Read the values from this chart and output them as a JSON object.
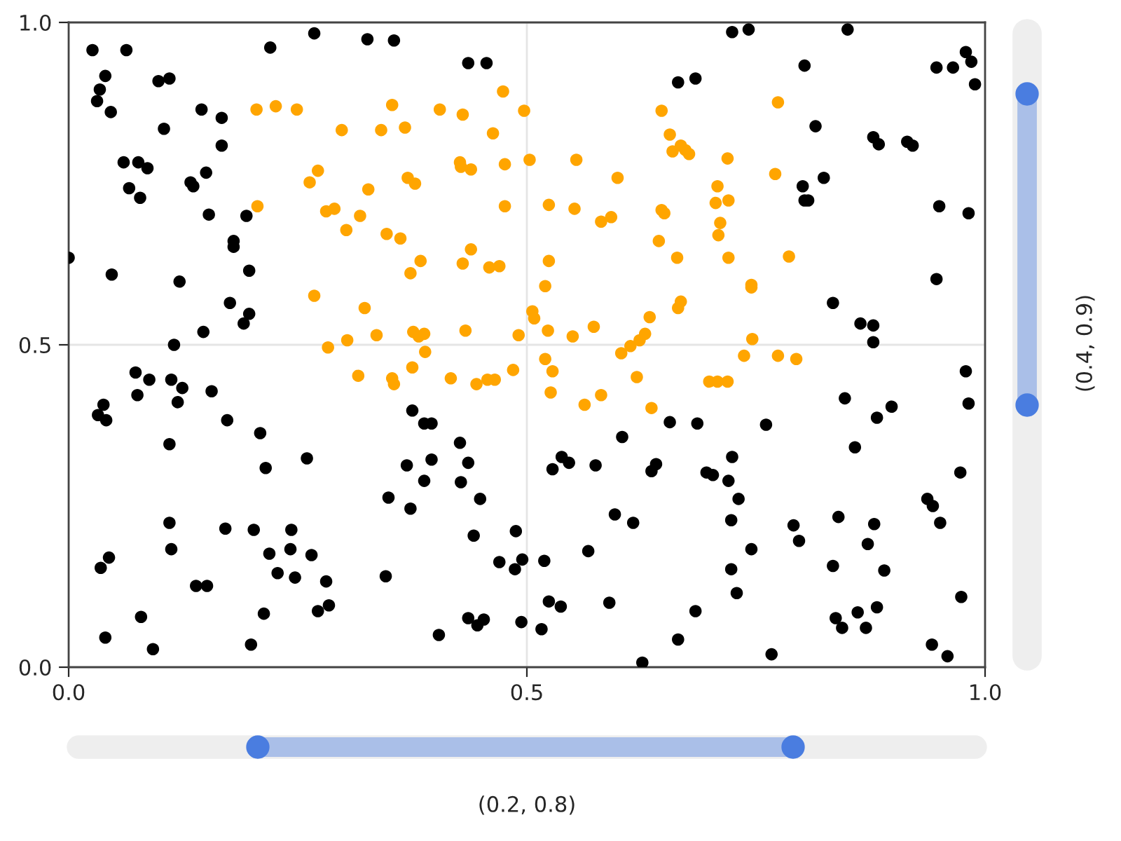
{
  "chart_data": {
    "type": "scatter",
    "xlim": [
      0,
      1
    ],
    "ylim": [
      0,
      1
    ],
    "xticks": [
      {
        "value": 0,
        "label": "0.0"
      },
      {
        "value": 0.5,
        "label": "0.5"
      },
      {
        "value": 1,
        "label": "1.0"
      }
    ],
    "yticks": [
      {
        "value": 0,
        "label": "0.0"
      },
      {
        "value": 0.5,
        "label": "0.5"
      },
      {
        "value": 1,
        "label": "1.0"
      }
    ],
    "grid": true,
    "marker": "circle",
    "annotations": [
      "(0.2, 0.8)",
      "(0.4, 0.9)"
    ],
    "series": [
      {
        "color": "#000000",
        "x": [
          0.026,
          0.04,
          0.034,
          0.031,
          0.046,
          0.047,
          0.063,
          0.06,
          0.066,
          0.076,
          0.078,
          0.086,
          0.098,
          0.11,
          0.104,
          0.121,
          0.133,
          0.136,
          0.145,
          0.15,
          0.153,
          0.167,
          0.167,
          0.18,
          0.18,
          0.176,
          0.191,
          0.197,
          0.197,
          0.194,
          0.22,
          0.268,
          0.326,
          0.355,
          0.436,
          0.456,
          0.147,
          0.115,
          0.032,
          0.038,
          0.041,
          0.073,
          0.088,
          0.075,
          0.112,
          0.124,
          0.119,
          0.156,
          0.173,
          0.11,
          0.209,
          0.215,
          0.26,
          0.375,
          0.388,
          0.396,
          0.369,
          0.388,
          0.396,
          0.427,
          0.428,
          0.436,
          0.449,
          0.442,
          0.349,
          0.373,
          0.11,
          0.112,
          0.171,
          0.202,
          0.243,
          0.219,
          0.228,
          0.242,
          0.247,
          0.265,
          0.139,
          0.151,
          0.281,
          0.346,
          0.272,
          0.284,
          0.213,
          0.199,
          0.092,
          0.079,
          0.035,
          0.044,
          0.04,
          0.404,
          0.436,
          0.446,
          0.453,
          0.47,
          0.487,
          0.488,
          0.495,
          0.494,
          0.516,
          0.519,
          0.524,
          0.537,
          0.528,
          0.538,
          0.546,
          0.575,
          0.567,
          0.59,
          0.596,
          0.604,
          0.616,
          0.626,
          0.636,
          0.641,
          0.656,
          0.665,
          0.684,
          0.686,
          0.696,
          0.703,
          0.72,
          0.724,
          0.731,
          0.723,
          0.723,
          0.729,
          0.745,
          0.761,
          0.767,
          0.791,
          0.797,
          0.665,
          0.684,
          0.724,
          0.742,
          0.85,
          0.803,
          0.815,
          0.824,
          0.801,
          0.803,
          0.807,
          0.834,
          0.864,
          0.878,
          0.878,
          0.878,
          0.884,
          0.915,
          0.921,
          0.847,
          0.858,
          0.882,
          0.898,
          0.872,
          0.879,
          0.84,
          0.834,
          0.89,
          0.882,
          0.861,
          0.87,
          0.837,
          0.844,
          0.937,
          0.943,
          0.951,
          0.973,
          0.974,
          0.979,
          0.982,
          0.947,
          0.95,
          0.982,
          0.947,
          0.965,
          0.979,
          0.985,
          0.989,
          0.942,
          0.959,
          0.0
        ],
        "values": [
          0.957,
          0.917,
          0.896,
          0.878,
          0.861,
          0.609,
          0.957,
          0.783,
          0.743,
          0.783,
          0.728,
          0.774,
          0.909,
          0.913,
          0.835,
          0.598,
          0.752,
          0.746,
          0.865,
          0.767,
          0.702,
          0.852,
          0.809,
          0.661,
          0.652,
          0.565,
          0.533,
          0.548,
          0.615,
          0.7,
          0.961,
          0.983,
          0.974,
          0.972,
          0.937,
          0.937,
          0.52,
          0.5,
          0.391,
          0.407,
          0.383,
          0.457,
          0.446,
          0.422,
          0.446,
          0.433,
          0.411,
          0.428,
          0.383,
          0.346,
          0.363,
          0.309,
          0.324,
          0.398,
          0.378,
          0.378,
          0.313,
          0.289,
          0.322,
          0.348,
          0.287,
          0.317,
          0.261,
          0.204,
          0.263,
          0.246,
          0.224,
          0.183,
          0.215,
          0.213,
          0.213,
          0.176,
          0.146,
          0.183,
          0.139,
          0.174,
          0.126,
          0.126,
          0.133,
          0.141,
          0.087,
          0.096,
          0.083,
          0.035,
          0.028,
          0.078,
          0.154,
          0.17,
          0.046,
          0.05,
          0.076,
          0.065,
          0.074,
          0.163,
          0.152,
          0.211,
          0.167,
          0.07,
          0.059,
          0.165,
          0.102,
          0.094,
          0.307,
          0.326,
          0.317,
          0.313,
          0.18,
          0.1,
          0.237,
          0.357,
          0.224,
          0.007,
          0.304,
          0.315,
          0.38,
          0.043,
          0.087,
          0.378,
          0.302,
          0.298,
          0.289,
          0.326,
          0.261,
          0.228,
          0.152,
          0.115,
          0.183,
          0.376,
          0.02,
          0.22,
          0.196,
          0.907,
          0.913,
          0.985,
          0.989,
          0.989,
          0.933,
          0.839,
          0.759,
          0.746,
          0.724,
          0.724,
          0.565,
          0.533,
          0.504,
          0.53,
          0.822,
          0.811,
          0.815,
          0.809,
          0.417,
          0.341,
          0.387,
          0.404,
          0.191,
          0.222,
          0.233,
          0.157,
          0.15,
          0.093,
          0.085,
          0.061,
          0.076,
          0.061,
          0.261,
          0.25,
          0.224,
          0.302,
          0.109,
          0.459,
          0.409,
          0.602,
          0.715,
          0.704,
          0.93,
          0.93,
          0.954,
          0.939,
          0.904,
          0.035,
          0.017,
          0.635
        ]
      },
      {
        "color": "#ffa500",
        "x": [
          0.205,
          0.226,
          0.249,
          0.206,
          0.263,
          0.272,
          0.281,
          0.29,
          0.298,
          0.303,
          0.318,
          0.327,
          0.341,
          0.367,
          0.353,
          0.268,
          0.283,
          0.304,
          0.323,
          0.316,
          0.336,
          0.347,
          0.362,
          0.37,
          0.378,
          0.373,
          0.384,
          0.376,
          0.388,
          0.389,
          0.382,
          0.375,
          0.353,
          0.355,
          0.405,
          0.43,
          0.427,
          0.428,
          0.439,
          0.43,
          0.439,
          0.459,
          0.47,
          0.433,
          0.417,
          0.445,
          0.457,
          0.465,
          0.463,
          0.474,
          0.476,
          0.476,
          0.497,
          0.503,
          0.506,
          0.508,
          0.491,
          0.485,
          0.52,
          0.524,
          0.523,
          0.52,
          0.528,
          0.526,
          0.524,
          0.554,
          0.552,
          0.55,
          0.563,
          0.581,
          0.573,
          0.581,
          0.592,
          0.599,
          0.603,
          0.613,
          0.623,
          0.62,
          0.629,
          0.634,
          0.636,
          0.644,
          0.647,
          0.647,
          0.65,
          0.656,
          0.659,
          0.668,
          0.673,
          0.677,
          0.664,
          0.665,
          0.668,
          0.708,
          0.706,
          0.72,
          0.719,
          0.711,
          0.709,
          0.72,
          0.699,
          0.708,
          0.719,
          0.737,
          0.745,
          0.745,
          0.746,
          0.771,
          0.774,
          0.774,
          0.786,
          0.794
        ],
        "values": [
          0.865,
          0.87,
          0.865,
          0.715,
          0.752,
          0.77,
          0.707,
          0.711,
          0.833,
          0.678,
          0.7,
          0.741,
          0.833,
          0.837,
          0.872,
          0.576,
          0.496,
          0.507,
          0.557,
          0.452,
          0.515,
          0.672,
          0.665,
          0.759,
          0.75,
          0.611,
          0.63,
          0.52,
          0.517,
          0.489,
          0.513,
          0.465,
          0.448,
          0.439,
          0.865,
          0.857,
          0.783,
          0.776,
          0.772,
          0.626,
          0.648,
          0.62,
          0.622,
          0.522,
          0.448,
          0.439,
          0.446,
          0.446,
          0.828,
          0.893,
          0.78,
          0.715,
          0.863,
          0.787,
          0.552,
          0.541,
          0.515,
          0.461,
          0.591,
          0.63,
          0.522,
          0.478,
          0.459,
          0.426,
          0.717,
          0.787,
          0.711,
          0.513,
          0.407,
          0.422,
          0.528,
          0.691,
          0.698,
          0.759,
          0.487,
          0.498,
          0.507,
          0.45,
          0.517,
          0.543,
          0.402,
          0.661,
          0.863,
          0.709,
          0.704,
          0.826,
          0.8,
          0.809,
          0.802,
          0.796,
          0.635,
          0.557,
          0.567,
          0.746,
          0.72,
          0.724,
          0.789,
          0.689,
          0.67,
          0.635,
          0.443,
          0.443,
          0.443,
          0.483,
          0.593,
          0.589,
          0.509,
          0.765,
          0.876,
          0.483,
          0.637,
          0.478
        ]
      }
    ]
  }
}
